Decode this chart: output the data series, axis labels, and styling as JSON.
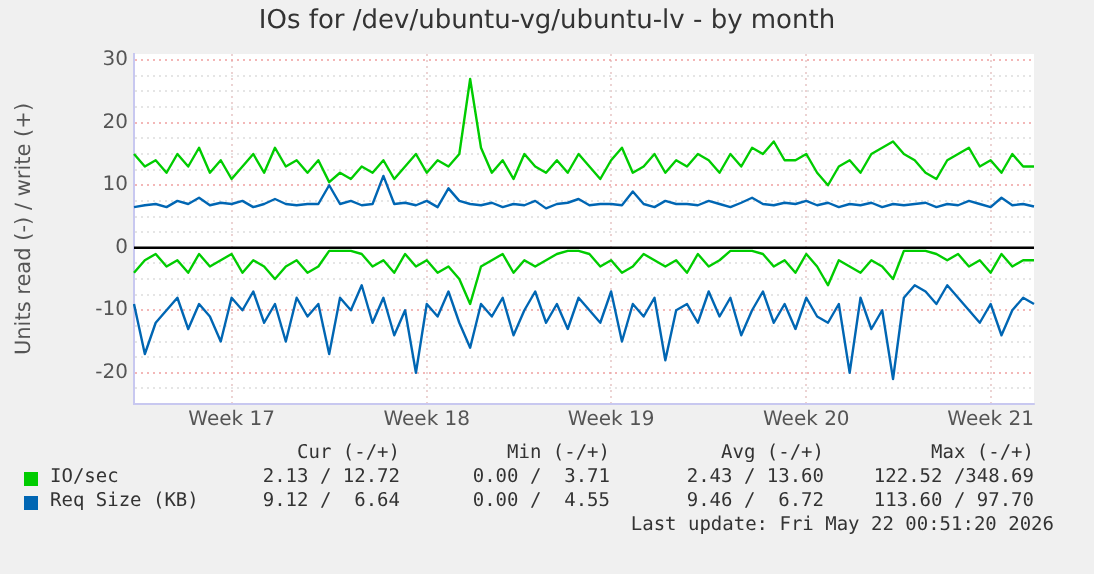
{
  "chart_data": {
    "type": "line",
    "title": "IOs for /dev/ubuntu-vg/ubuntu-lv - by month",
    "ylabel": "Units read (-) / write (+)",
    "categories": [
      null,
      null,
      null,
      null,
      null,
      null,
      null,
      null,
      null,
      "Week 17",
      null,
      null,
      null,
      null,
      null,
      null,
      null,
      null,
      null,
      null,
      null,
      null,
      null,
      null,
      null,
      null,
      null,
      "Week 18",
      null,
      null,
      null,
      null,
      null,
      null,
      null,
      null,
      null,
      null,
      null,
      null,
      null,
      null,
      null,
      null,
      "Week 19",
      null,
      null,
      null,
      null,
      null,
      null,
      null,
      null,
      null,
      null,
      null,
      null,
      null,
      null,
      null,
      null,
      null,
      "Week 20",
      null,
      null,
      null,
      null,
      null,
      null,
      null,
      null,
      null,
      null,
      null,
      null,
      null,
      null,
      null,
      null,
      "Week 21",
      null,
      null,
      null,
      null
    ],
    "series": [
      {
        "name": "IO/sec",
        "color": "#00cc00",
        "values": [
          15,
          13,
          14,
          12,
          15,
          13,
          16,
          12,
          14,
          11,
          13,
          15,
          12,
          16,
          13,
          14,
          12,
          14,
          10.5,
          12,
          11,
          13,
          12,
          14,
          11,
          13,
          15,
          12,
          14,
          13,
          15,
          27,
          16,
          12,
          14,
          11,
          15,
          13,
          12,
          14,
          12,
          15,
          13,
          11,
          14,
          16,
          12,
          13,
          15,
          12,
          14,
          13,
          15,
          14,
          12,
          15,
          13,
          16,
          15,
          17,
          14,
          14,
          15,
          12,
          10,
          13,
          14,
          12,
          15,
          16,
          17,
          15,
          14,
          12,
          11,
          14,
          15,
          16,
          13,
          14,
          12,
          15,
          13,
          13
        ]
      },
      {
        "color": "#00cc00",
        "values": [
          -4,
          -2,
          -1,
          -3,
          -2,
          -4,
          -1,
          -3,
          -2,
          -1,
          -4,
          -2,
          -3,
          -5,
          -3,
          -2,
          -4,
          -3,
          -0.5,
          -0.5,
          -0.5,
          -1,
          -3,
          -2,
          -4,
          -1,
          -3,
          -2,
          -4,
          -3,
          -5,
          -9,
          -3,
          -2,
          -1,
          -4,
          -2,
          -3,
          -2,
          -1,
          -0.5,
          -0.5,
          -1,
          -3,
          -2,
          -4,
          -3,
          -1,
          -2,
          -3,
          -2,
          -4,
          -1,
          -3,
          -2,
          -0.5,
          -0.5,
          -0.5,
          -1,
          -3,
          -2,
          -4,
          -1,
          -3,
          -6,
          -2,
          -3,
          -4,
          -2,
          -3,
          -5,
          -0.5,
          -0.5,
          -0.5,
          -1,
          -2,
          -1,
          -3,
          -2,
          -4,
          -1,
          -3,
          -2,
          -2
        ]
      },
      {
        "name": "Req Size (KB)",
        "color": "#0066b3",
        "values": [
          6.5,
          6.8,
          7,
          6.5,
          7.5,
          7,
          8,
          6.8,
          7.2,
          7,
          7.5,
          6.5,
          7,
          7.8,
          7,
          6.8,
          7,
          7,
          10,
          7,
          7.5,
          6.8,
          7,
          11.5,
          7,
          7.2,
          6.8,
          7.5,
          6.5,
          9.5,
          7.5,
          7,
          6.8,
          7.2,
          6.5,
          7,
          6.8,
          7.5,
          6.3,
          7,
          7.2,
          7.8,
          6.8,
          7,
          7,
          6.8,
          9,
          7,
          6.5,
          7.5,
          7,
          7,
          6.8,
          7.5,
          7,
          6.5,
          7.2,
          8,
          7,
          6.8,
          7.2,
          7,
          7.5,
          6.8,
          7.2,
          6.5,
          7,
          6.8,
          7.2,
          6.5,
          7,
          6.8,
          7,
          7.2,
          6.5,
          7,
          6.8,
          7.5,
          7,
          6.5,
          8,
          6.8,
          7,
          6.6
        ]
      },
      {
        "color": "#0066b3",
        "values": [
          -9,
          -17,
          -12,
          -10,
          -8,
          -13,
          -9,
          -11,
          -15,
          -8,
          -10,
          -7,
          -12,
          -9,
          -15,
          -8,
          -11,
          -9,
          -17,
          -8,
          -10,
          -6,
          -12,
          -8,
          -14,
          -10,
          -20,
          -9,
          -11,
          -7,
          -12,
          -16,
          -9,
          -11,
          -8,
          -14,
          -10,
          -7,
          -12,
          -9,
          -13,
          -8,
          -10,
          -12,
          -7,
          -15,
          -9,
          -11,
          -8,
          -18,
          -10,
          -9,
          -12,
          -7,
          -11,
          -8,
          -14,
          -10,
          -7,
          -12,
          -9,
          -13,
          -8,
          -11,
          -12,
          -9,
          -20,
          -8,
          -13,
          -10,
          -21,
          -8,
          -6,
          -7,
          -9,
          -6,
          -8,
          -10,
          -12,
          -9,
          -14,
          -10,
          -8,
          -9
        ]
      }
    ],
    "ylim": [
      -25,
      31
    ],
    "yticks": [
      {
        "value": -22.5,
        "label": null
      },
      -20,
      {
        "value": -17.5,
        "label": null
      },
      {
        "value": -15,
        "label": null
      },
      {
        "value": -12.5,
        "label": null
      },
      -10,
      {
        "value": -7.5,
        "label": null
      },
      {
        "value": -5,
        "label": null
      },
      {
        "value": -2.5,
        "label": null
      },
      0,
      {
        "value": 2.5,
        "label": null
      },
      {
        "value": 5,
        "label": null
      },
      {
        "value": 7.5,
        "label": null
      },
      10,
      {
        "value": 12.5,
        "label": null
      },
      {
        "value": 15,
        "label": null
      },
      {
        "value": 17.5,
        "label": null
      },
      20,
      {
        "value": 22.5,
        "label": null
      },
      {
        "value": 25,
        "label": null
      },
      {
        "value": 27.5,
        "label": null
      },
      30
    ],
    "ref_lines": [
      {
        "axis": "y",
        "value": 0,
        "color": "#000000"
      }
    ],
    "grid": true,
    "legend": "bottom",
    "marker": "none",
    "line_style": "solid",
    "annotations": [
      "Cur (-/+)",
      "Min (-/+)",
      "Avg (-/+)",
      "Max (-/+)",
      "2.13 / 12.72",
      "0.00 /  3.71",
      "2.43 / 13.60",
      "122.52 /348.69",
      "9.12 /  6.64",
      "0.00 /  4.55",
      "9.46 /  6.72",
      "113.60 / 97.70",
      "Last update: Fri May 22 00:51:20 2026"
    ]
  }
}
